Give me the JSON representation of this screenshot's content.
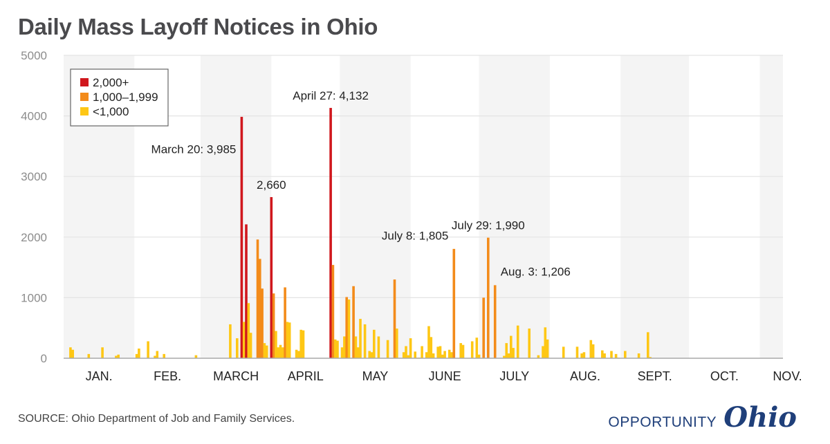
{
  "header": {
    "title": "Daily Mass Layoff Notices in Ohio"
  },
  "footer": {
    "source": "SOURCE: Ohio Department of Job and Family Services.",
    "logo_word": "OPPORTUNITY",
    "logo_script": "Ohio"
  },
  "colors": {
    "high": "#d0171d",
    "mid": "#f38b1a",
    "low": "#fec715",
    "band": "#f4f4f4",
    "grid": "#e3e3e3",
    "axis": "#a8a8a8",
    "logo": "#1f3f7a"
  },
  "chart_data": {
    "type": "bar",
    "title": "Daily Mass Layoff Notices in Ohio",
    "xlabel": "",
    "ylabel": "",
    "ylim": [
      0,
      5000
    ],
    "yticks": [
      0,
      1000,
      2000,
      3000,
      4000,
      5000
    ],
    "grid": true,
    "legend_position": "top-left",
    "legend": [
      {
        "label": "2,000+",
        "key": "high"
      },
      {
        "label": "1,000–1,999",
        "key": "mid"
      },
      {
        "label": "<1,000",
        "key": "low"
      }
    ],
    "months": [
      {
        "label": "JAN.",
        "start_day": 1
      },
      {
        "label": "FEB.",
        "start_day": 32
      },
      {
        "label": "MARCH",
        "start_day": 61
      },
      {
        "label": "APRIL",
        "start_day": 92
      },
      {
        "label": "MAY",
        "start_day": 122
      },
      {
        "label": "JUNE",
        "start_day": 153
      },
      {
        "label": "JULY",
        "start_day": 183
      },
      {
        "label": "AUG.",
        "start_day": 214
      },
      {
        "label": "SEPT.",
        "start_day": 245
      },
      {
        "label": "OCT.",
        "start_day": 275
      },
      {
        "label": "NOV.",
        "start_day": 306
      }
    ],
    "x_range_days": [
      1,
      316
    ],
    "bars": [
      {
        "day": 4,
        "value": 180
      },
      {
        "day": 5,
        "value": 140
      },
      {
        "day": 12,
        "value": 70
      },
      {
        "day": 18,
        "value": 180
      },
      {
        "day": 24,
        "value": 40
      },
      {
        "day": 25,
        "value": 60
      },
      {
        "day": 33,
        "value": 70
      },
      {
        "day": 34,
        "value": 160
      },
      {
        "day": 38,
        "value": 280
      },
      {
        "day": 41,
        "value": 40
      },
      {
        "day": 42,
        "value": 120
      },
      {
        "day": 45,
        "value": 70
      },
      {
        "day": 59,
        "value": 50
      },
      {
        "day": 74,
        "value": 560
      },
      {
        "day": 77,
        "value": 330
      },
      {
        "day": 79,
        "value": 3985
      },
      {
        "day": 80,
        "value": 600
      },
      {
        "day": 81,
        "value": 2210
      },
      {
        "day": 82,
        "value": 910
      },
      {
        "day": 83,
        "value": 420
      },
      {
        "day": 86,
        "value": 1960
      },
      {
        "day": 87,
        "value": 1640
      },
      {
        "day": 88,
        "value": 1150
      },
      {
        "day": 89,
        "value": 250
      },
      {
        "day": 90,
        "value": 210
      },
      {
        "day": 92,
        "value": 2660
      },
      {
        "day": 93,
        "value": 1070
      },
      {
        "day": 94,
        "value": 450
      },
      {
        "day": 95,
        "value": 180
      },
      {
        "day": 96,
        "value": 220
      },
      {
        "day": 97,
        "value": 180
      },
      {
        "day": 98,
        "value": 1170
      },
      {
        "day": 99,
        "value": 600
      },
      {
        "day": 100,
        "value": 590
      },
      {
        "day": 103,
        "value": 140
      },
      {
        "day": 104,
        "value": 120
      },
      {
        "day": 105,
        "value": 470
      },
      {
        "day": 106,
        "value": 460
      },
      {
        "day": 118,
        "value": 4132
      },
      {
        "day": 119,
        "value": 1540
      },
      {
        "day": 120,
        "value": 310
      },
      {
        "day": 121,
        "value": 290
      },
      {
        "day": 123,
        "value": 180
      },
      {
        "day": 124,
        "value": 360
      },
      {
        "day": 125,
        "value": 1010
      },
      {
        "day": 126,
        "value": 970
      },
      {
        "day": 128,
        "value": 1190
      },
      {
        "day": 129,
        "value": 360
      },
      {
        "day": 130,
        "value": 180
      },
      {
        "day": 131,
        "value": 650
      },
      {
        "day": 133,
        "value": 560
      },
      {
        "day": 135,
        "value": 120
      },
      {
        "day": 136,
        "value": 100
      },
      {
        "day": 137,
        "value": 470
      },
      {
        "day": 139,
        "value": 360
      },
      {
        "day": 143,
        "value": 300
      },
      {
        "day": 146,
        "value": 1300
      },
      {
        "day": 147,
        "value": 490
      },
      {
        "day": 150,
        "value": 100
      },
      {
        "day": 151,
        "value": 200
      },
      {
        "day": 152,
        "value": 50
      },
      {
        "day": 153,
        "value": 330
      },
      {
        "day": 155,
        "value": 110
      },
      {
        "day": 156,
        "value": 10
      },
      {
        "day": 157,
        "value": 10
      },
      {
        "day": 158,
        "value": 200
      },
      {
        "day": 160,
        "value": 100
      },
      {
        "day": 161,
        "value": 530
      },
      {
        "day": 162,
        "value": 350
      },
      {
        "day": 163,
        "value": 80
      },
      {
        "day": 165,
        "value": 190
      },
      {
        "day": 166,
        "value": 200
      },
      {
        "day": 167,
        "value": 60
      },
      {
        "day": 168,
        "value": 120
      },
      {
        "day": 170,
        "value": 140
      },
      {
        "day": 171,
        "value": 100
      },
      {
        "day": 172,
        "value": 1805
      },
      {
        "day": 175,
        "value": 250
      },
      {
        "day": 176,
        "value": 220
      },
      {
        "day": 180,
        "value": 280
      },
      {
        "day": 182,
        "value": 340
      },
      {
        "day": 183,
        "value": 60
      },
      {
        "day": 185,
        "value": 1000
      },
      {
        "day": 187,
        "value": 1990
      },
      {
        "day": 190,
        "value": 1206
      },
      {
        "day": 194,
        "value": 40
      },
      {
        "day": 195,
        "value": 250
      },
      {
        "day": 196,
        "value": 80
      },
      {
        "day": 197,
        "value": 370
      },
      {
        "day": 198,
        "value": 170
      },
      {
        "day": 200,
        "value": 540
      },
      {
        "day": 205,
        "value": 490
      },
      {
        "day": 209,
        "value": 50
      },
      {
        "day": 211,
        "value": 200
      },
      {
        "day": 212,
        "value": 510
      },
      {
        "day": 213,
        "value": 310
      },
      {
        "day": 220,
        "value": 190
      },
      {
        "day": 226,
        "value": 190
      },
      {
        "day": 228,
        "value": 80
      },
      {
        "day": 229,
        "value": 100
      },
      {
        "day": 232,
        "value": 300
      },
      {
        "day": 233,
        "value": 230
      },
      {
        "day": 237,
        "value": 130
      },
      {
        "day": 238,
        "value": 80
      },
      {
        "day": 241,
        "value": 120
      },
      {
        "day": 243,
        "value": 70
      },
      {
        "day": 244,
        "value": 10
      },
      {
        "day": 247,
        "value": 120
      },
      {
        "day": 253,
        "value": 80
      },
      {
        "day": 257,
        "value": 430
      },
      {
        "day": 258,
        "value": 20
      }
    ],
    "annotations": [
      {
        "text": "March 20: 3,985",
        "day": 79,
        "value": 3985,
        "anchor": "left",
        "dy": 600
      },
      {
        "text": "2,660",
        "day": 92,
        "value": 2660,
        "anchor": "middle",
        "dy": 280
      },
      {
        "text": "April 27: 4,132",
        "day": 118,
        "value": 4132,
        "anchor": "middle",
        "dy": 200
      },
      {
        "text": "July 8: 1,805",
        "day": 172,
        "value": 1805,
        "anchor": "left",
        "dy": -150
      },
      {
        "text": "July 29: 1,990",
        "day": 187,
        "value": 1990,
        "anchor": "middle",
        "dy": 180
      },
      {
        "text": "Aug. 3: 1,206",
        "day": 190,
        "value": 1206,
        "anchor": "right",
        "dy": -160
      }
    ]
  }
}
